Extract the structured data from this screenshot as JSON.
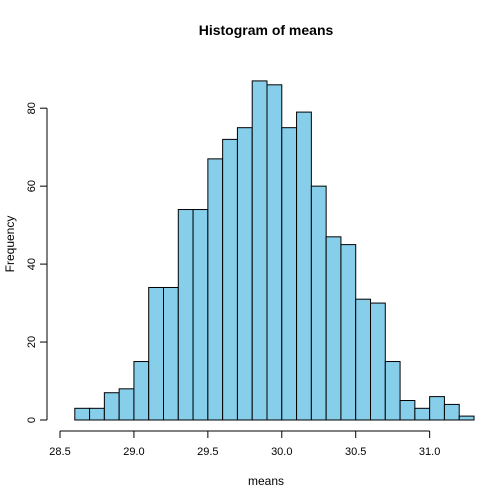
{
  "chart_data": {
    "type": "bar",
    "title": "Histogram of means",
    "xlabel": "means",
    "ylabel": "Frequency",
    "bar_color": "#87ceeb",
    "edge_color": "#000000",
    "bin_width": 0.1,
    "bins": [
      {
        "start": 28.6,
        "end": 28.7,
        "value": 3
      },
      {
        "start": 28.7,
        "end": 28.8,
        "value": 3
      },
      {
        "start": 28.8,
        "end": 28.9,
        "value": 7
      },
      {
        "start": 28.9,
        "end": 29.0,
        "value": 8
      },
      {
        "start": 29.0,
        "end": 29.1,
        "value": 15
      },
      {
        "start": 29.1,
        "end": 29.2,
        "value": 34
      },
      {
        "start": 29.2,
        "end": 29.3,
        "value": 34
      },
      {
        "start": 29.3,
        "end": 29.4,
        "value": 54
      },
      {
        "start": 29.4,
        "end": 29.5,
        "value": 54
      },
      {
        "start": 29.5,
        "end": 29.6,
        "value": 67
      },
      {
        "start": 29.6,
        "end": 29.7,
        "value": 72
      },
      {
        "start": 29.7,
        "end": 29.8,
        "value": 75
      },
      {
        "start": 29.8,
        "end": 29.9,
        "value": 87
      },
      {
        "start": 29.9,
        "end": 30.0,
        "value": 86
      },
      {
        "start": 30.0,
        "end": 30.1,
        "value": 75
      },
      {
        "start": 30.1,
        "end": 30.2,
        "value": 79
      },
      {
        "start": 30.2,
        "end": 30.3,
        "value": 60
      },
      {
        "start": 30.3,
        "end": 30.4,
        "value": 47
      },
      {
        "start": 30.4,
        "end": 30.5,
        "value": 45
      },
      {
        "start": 30.5,
        "end": 30.6,
        "value": 31
      },
      {
        "start": 30.6,
        "end": 30.7,
        "value": 30
      },
      {
        "start": 30.7,
        "end": 30.8,
        "value": 15
      },
      {
        "start": 30.8,
        "end": 30.9,
        "value": 5
      },
      {
        "start": 30.9,
        "end": 31.0,
        "value": 3
      },
      {
        "start": 31.0,
        "end": 31.1,
        "value": 6
      },
      {
        "start": 31.1,
        "end": 31.2,
        "value": 4
      },
      {
        "start": 31.2,
        "end": 31.3,
        "value": 1
      }
    ],
    "xlim": [
      28.6,
      31.3
    ],
    "ylim": [
      0,
      87
    ],
    "x_ticks": [
      28.5,
      29.0,
      29.5,
      30.0,
      30.5,
      31.0
    ],
    "x_tick_labels": [
      "28.5",
      "29.0",
      "29.5",
      "30.0",
      "30.5",
      "31.0"
    ],
    "y_ticks": [
      0,
      20,
      40,
      60,
      80
    ],
    "y_tick_labels": [
      "0",
      "20",
      "40",
      "60",
      "80"
    ],
    "grid": false,
    "legend": "none"
  }
}
